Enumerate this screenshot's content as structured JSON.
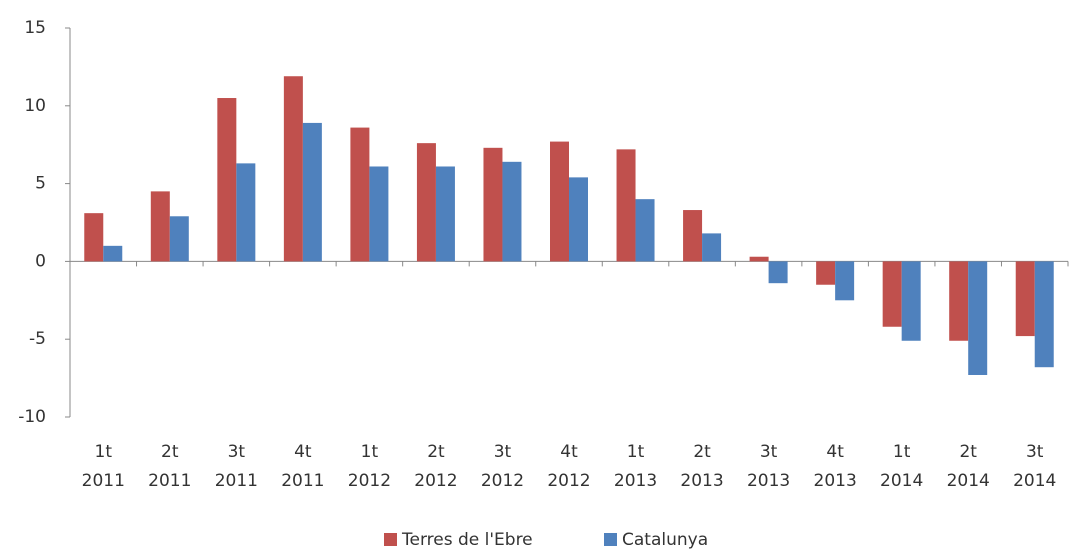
{
  "chart_data": {
    "type": "bar",
    "categories": [
      [
        "1t",
        "2011"
      ],
      [
        "2t",
        "2011"
      ],
      [
        "3t",
        "2011"
      ],
      [
        "4t",
        "2011"
      ],
      [
        "1t",
        "2012"
      ],
      [
        "2t",
        "2012"
      ],
      [
        "3t",
        "2012"
      ],
      [
        "4t",
        "2012"
      ],
      [
        "1t",
        "2013"
      ],
      [
        "2t",
        "2013"
      ],
      [
        "3t",
        "2013"
      ],
      [
        "4t",
        "2013"
      ],
      [
        "1t",
        "2014"
      ],
      [
        "2t",
        "2014"
      ],
      [
        "3t",
        "2014"
      ]
    ],
    "series": [
      {
        "name": "Terres de l'Ebre",
        "color": "#c0504d",
        "values": [
          3.1,
          4.5,
          10.5,
          11.9,
          8.6,
          7.6,
          7.3,
          7.7,
          7.2,
          3.3,
          0.3,
          -1.5,
          -4.2,
          -5.1,
          -4.8
        ]
      },
      {
        "name": "Catalunya",
        "color": "#4f81bd",
        "values": [
          1.0,
          2.9,
          6.3,
          8.9,
          6.1,
          6.1,
          6.4,
          5.4,
          4.0,
          1.8,
          -1.4,
          -2.5,
          -5.1,
          -7.3,
          -6.8
        ]
      }
    ],
    "ylim": [
      -10,
      15
    ],
    "yticks": [
      -10,
      -5,
      0,
      5,
      10,
      15
    ],
    "grid": false,
    "legend": "bottom"
  }
}
